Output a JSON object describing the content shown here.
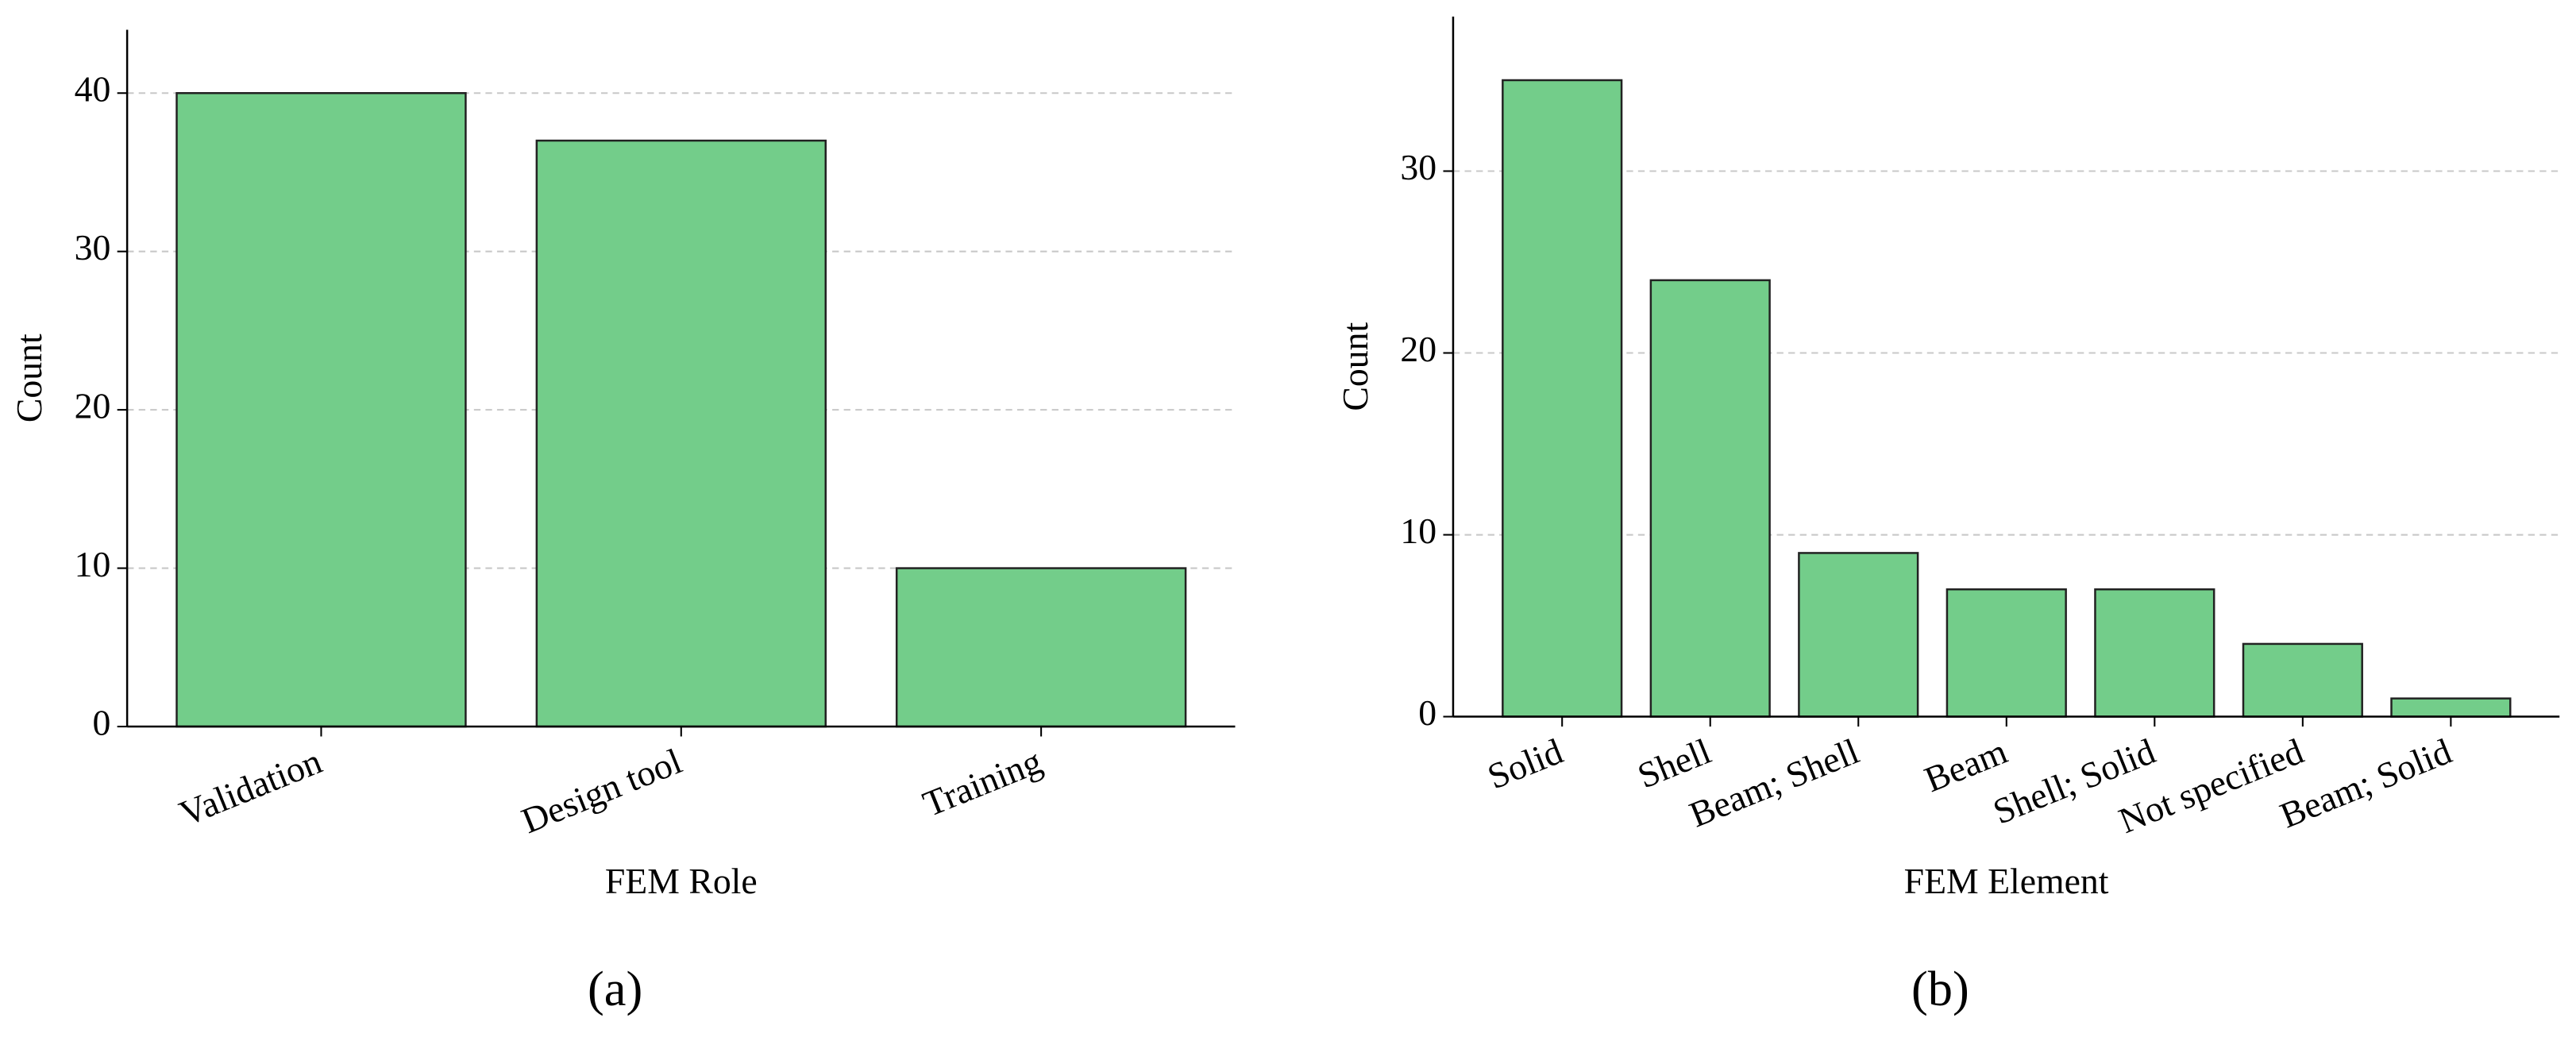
{
  "chart_data": [
    {
      "type": "bar",
      "caption": "(a)",
      "xlabel": "FEM Role",
      "ylabel": "Count",
      "categories": [
        "Validation",
        "Design tool",
        "Training"
      ],
      "values": [
        40,
        37,
        10
      ],
      "color": "#73cd8a",
      "ylim": [
        0,
        44
      ],
      "yticks": [
        0,
        10,
        20,
        30,
        40
      ],
      "grid": true
    },
    {
      "type": "bar",
      "caption": "(b)",
      "xlabel": "FEM Element",
      "ylabel": "Count",
      "categories": [
        "Solid",
        "Shell",
        "Beam; Shell",
        "Beam",
        "Shell; Solid",
        "Not specified",
        "Beam; Solid"
      ],
      "values": [
        35,
        24,
        9,
        7,
        7,
        4,
        1
      ],
      "color": "#73cd8a",
      "ylim": [
        0,
        38.5
      ],
      "yticks": [
        0,
        10,
        20,
        30
      ],
      "grid": true
    }
  ]
}
